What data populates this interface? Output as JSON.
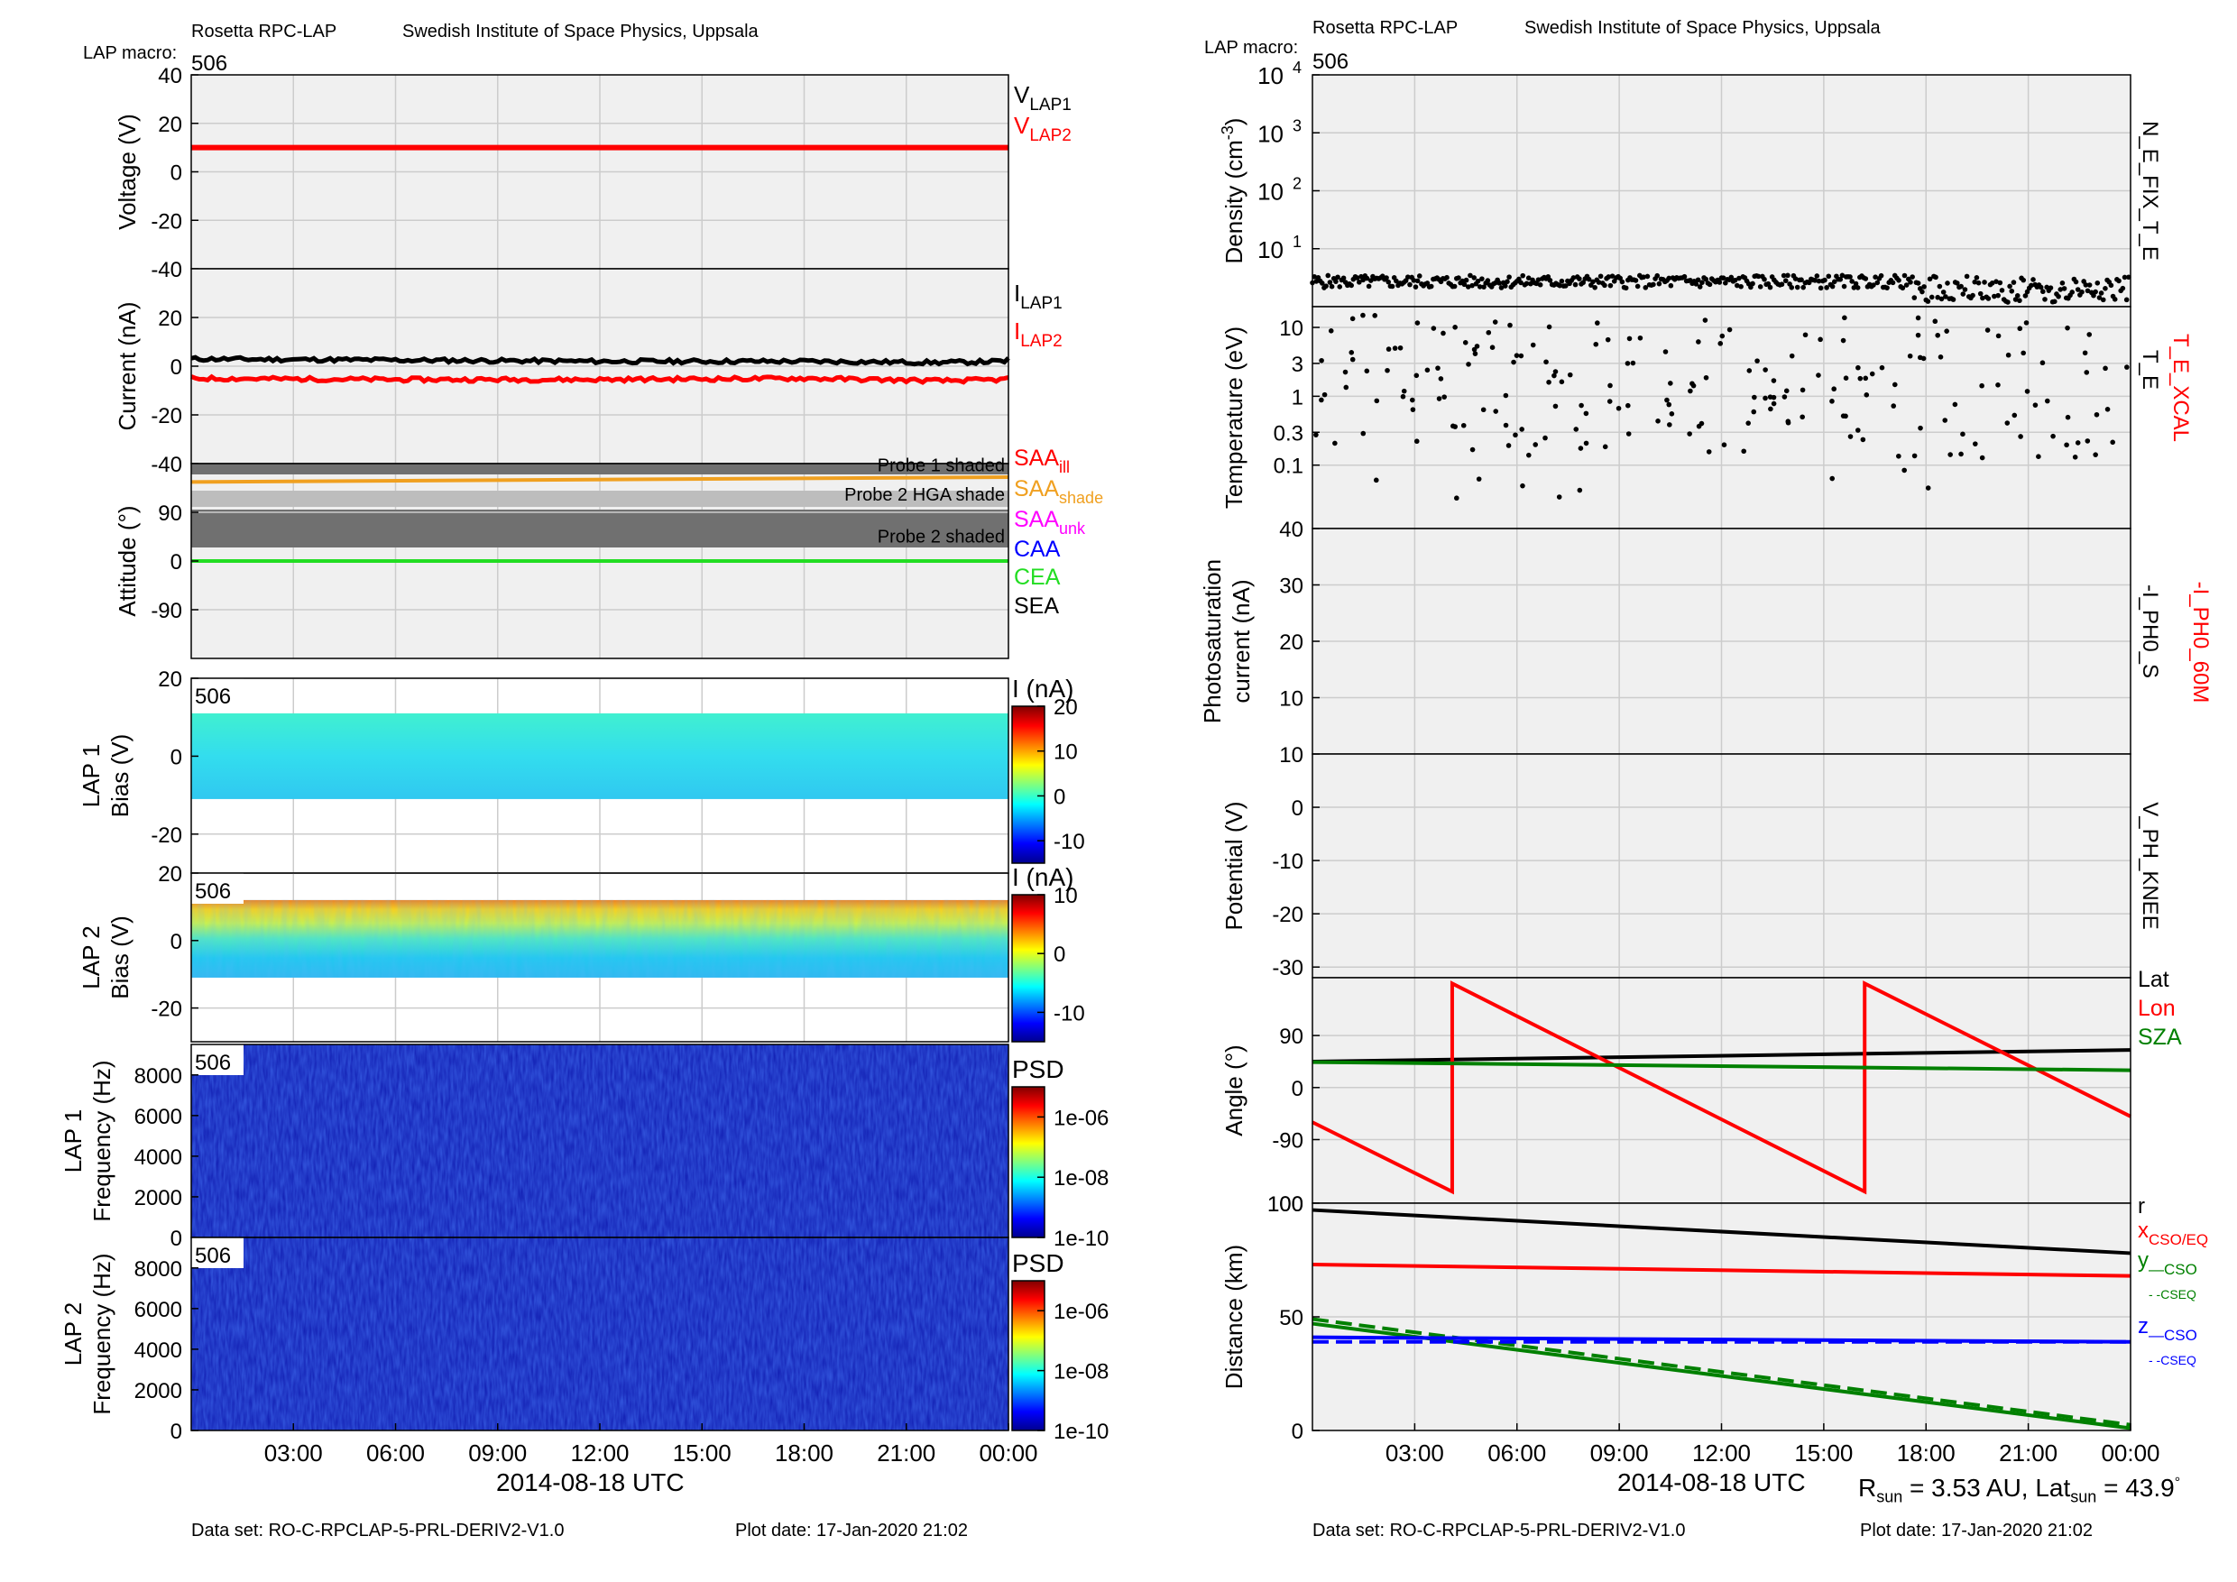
{
  "header": {
    "left": {
      "instrument": "Rosetta RPC-LAP",
      "institute": "Swedish Institute of Space Physics, Uppsala",
      "macro_label": "LAP macro:",
      "macro_value": "506"
    },
    "right": {
      "instrument": "Rosetta RPC-LAP",
      "institute": "Swedish Institute of Space Physics, Uppsala",
      "macro_label": "LAP macro:",
      "macro_value": "506"
    }
  },
  "footer": {
    "left": {
      "dataset": "Data set: RO-C-RPCLAP-5-PRL-DERIV2-V1.0",
      "plotdate": "Plot date: 17-Jan-2020 21:02",
      "xlabel": "2014-08-18 UTC"
    },
    "right": {
      "dataset": "Data set: RO-C-RPCLAP-5-PRL-DERIV2-V1.0",
      "plotdate": "Plot date: 17-Jan-2020 21:02",
      "xlabel": "2014-08-18 UTC",
      "rsun": "R",
      "rsun_sub": "sun",
      "rsun_val": " = 3.53 AU, Lat",
      "lat_sub": "sun",
      "lat_val": " = 43.9",
      "deg": "°"
    }
  },
  "colors": {
    "red": "#ff0000",
    "black": "#000000",
    "green": "#008000",
    "lime": "#22dd22",
    "blue": "#0000ff",
    "orange": "#f0a020",
    "magenta": "#ff00ff",
    "panel_bg": "#f0f0f0",
    "grid": "#cccccc"
  },
  "chart_data": [
    {
      "type": "line",
      "id": "voltage",
      "ylabel": "Voltage (V)",
      "ylim": [
        -40,
        40
      ],
      "yticks": [
        40,
        20,
        0,
        -20,
        -40
      ],
      "series": [
        {
          "name": "V_LAP1",
          "color": "#000000",
          "values": []
        },
        {
          "name": "V_LAP2",
          "color": "#ff0000",
          "x": [
            0,
            24
          ],
          "values": [
            10,
            10
          ]
        }
      ],
      "legend": [
        {
          "main": "V",
          "sub": "LAP1",
          "color": "#000000"
        },
        {
          "main": "V",
          "sub": "LAP2",
          "color": "#ff0000"
        }
      ]
    },
    {
      "type": "line",
      "id": "current",
      "ylabel": "Current (nA)",
      "ylim": [
        -40,
        40
      ],
      "yticks": [
        20,
        0,
        -20,
        -40
      ],
      "series": [
        {
          "name": "I_LAP1",
          "color": "#000000",
          "x": [
            0,
            6,
            12,
            18,
            22,
            24
          ],
          "values": [
            3,
            2.5,
            2,
            2,
            1.5,
            2
          ]
        },
        {
          "name": "I_LAP2",
          "color": "#ff0000",
          "x": [
            0,
            6,
            12,
            18,
            22,
            24
          ],
          "values": [
            -5,
            -5.5,
            -5.5,
            -5,
            -6,
            -5.5
          ]
        }
      ],
      "legend": [
        {
          "main": "I",
          "sub": "LAP1",
          "color": "#000000"
        },
        {
          "main": "I",
          "sub": "LAP2",
          "color": "#ff0000"
        }
      ]
    },
    {
      "type": "line",
      "id": "attitude",
      "ylabel": "Attitude (°)",
      "ylim": [
        -180,
        180
      ],
      "yticks": [
        90,
        0,
        -90
      ],
      "bands": [
        {
          "label": "Probe 1 shaded",
          "range": [
            160,
            180
          ],
          "shade": "#707070"
        },
        {
          "label": "Probe 2 HGA shade",
          "range": [
            100,
            130
          ],
          "shade": "#bdbdbd"
        },
        {
          "label": "Probe 2 shaded",
          "range": [
            25,
            95
          ],
          "shade": "#707070"
        }
      ],
      "series": [
        {
          "name": "SAA_shade",
          "color": "#f0a020",
          "x": [
            0,
            24
          ],
          "values": [
            146,
            155
          ]
        },
        {
          "name": "CEA",
          "color": "#22dd22",
          "x": [
            0,
            24
          ],
          "values": [
            0,
            0
          ]
        }
      ],
      "legend": [
        {
          "main": "SAA",
          "sub": "ill",
          "color": "#ff0000"
        },
        {
          "main": "SAA",
          "sub": "shade",
          "color": "#f0a020"
        },
        {
          "main": "SAA",
          "sub": "unk",
          "color": "#ff00ff"
        },
        {
          "main": "CAA",
          "sub": "",
          "color": "#0000ff"
        },
        {
          "main": "CEA",
          "sub": "",
          "color": "#22dd22"
        },
        {
          "main": "SEA",
          "sub": "",
          "color": "#000000"
        }
      ]
    },
    {
      "type": "heatmap",
      "id": "lap1bias",
      "ylabel": "LAP 1",
      "ylabel2": "Bias (V)",
      "ylim": [
        -30,
        20
      ],
      "yticks": [
        20,
        0,
        -20
      ],
      "macro": "506",
      "clabel": "I (nA)",
      "clim": [
        -15,
        20
      ],
      "cticks": [
        20,
        10,
        0,
        -10
      ],
      "band_range": [
        -11,
        11
      ]
    },
    {
      "type": "heatmap",
      "id": "lap2bias",
      "ylabel": "LAP 2",
      "ylabel2": "Bias (V)",
      "ylim": [
        -30,
        20
      ],
      "yticks": [
        20,
        0,
        -20
      ],
      "macro": "506",
      "clabel": "I (nA)",
      "clim": [
        -15,
        10
      ],
      "cticks": [
        10,
        0,
        -10
      ],
      "band_range": [
        -11,
        12
      ]
    },
    {
      "type": "heatmap",
      "id": "lap1psd",
      "ylabel": "LAP 1",
      "ylabel2": "Frequency (Hz)",
      "ylim": [
        0,
        9500
      ],
      "yticks": [
        8000,
        6000,
        4000,
        2000,
        0
      ],
      "macro": "506",
      "clabel": "PSD",
      "clim": [
        -10,
        -5
      ],
      "cticks": [
        "1e-06",
        "1e-08",
        "1e-10"
      ]
    },
    {
      "type": "heatmap",
      "id": "lap2psd",
      "ylabel": "LAP 2",
      "ylabel2": "Frequency (Hz)",
      "ylim": [
        0,
        9500
      ],
      "yticks": [
        8000,
        6000,
        4000,
        2000,
        0
      ],
      "macro": "506",
      "clabel": "PSD",
      "clim": [
        -10,
        -5
      ],
      "cticks": [
        "1e-06",
        "1e-08",
        "1e-10"
      ],
      "xticks": [
        "03:00",
        "06:00",
        "09:00",
        "12:00",
        "15:00",
        "18:00",
        "21:00",
        "00:00"
      ]
    },
    {
      "type": "scatter",
      "id": "density",
      "ylabel": "Density (cm",
      "ylabel_sup": "-3",
      "ylabel_end": ")",
      "yscale": "log",
      "ylim": [
        1,
        10000
      ],
      "yticks": [
        {
          "base": "10",
          "exp": "4"
        },
        {
          "base": "10",
          "exp": "3"
        },
        {
          "base": "10",
          "exp": "2"
        },
        {
          "base": "10",
          "exp": "1"
        }
      ],
      "series": [
        {
          "name": "N_E_FIX_T_E",
          "color": "#000000",
          "typical": 2.7
        }
      ],
      "legend": [
        {
          "main": "N_E_FIX_T_E",
          "color": "#000000"
        }
      ]
    },
    {
      "type": "scatter",
      "id": "temperature",
      "ylabel": "Temperature (eV)",
      "yscale": "log",
      "ylim": [
        0.012,
        20
      ],
      "yticks": [
        "10",
        "3",
        "1",
        "0.3",
        "0.1"
      ],
      "series": [
        {
          "name": "T_E",
          "color": "#000000"
        },
        {
          "name": "T_E_XCAL",
          "color": "#ff0000"
        }
      ],
      "legend": [
        {
          "main": "T_E",
          "color": "#000000"
        },
        {
          "main": "T_E_XCAL",
          "color": "#ff0000"
        }
      ]
    },
    {
      "type": "line",
      "id": "photosat",
      "ylabel": "Photosaturation",
      "ylabel2": "current (nA)",
      "ylim": [
        0,
        40
      ],
      "yticks": [
        40,
        30,
        20,
        10
      ],
      "series": [],
      "legend": [
        {
          "main": "-I_PH0_S",
          "color": "#000000"
        },
        {
          "main": "-I_PH0_60M",
          "color": "#ff0000"
        }
      ]
    },
    {
      "type": "line",
      "id": "potential",
      "ylabel": "Potential (V)",
      "ylim": [
        -32,
        10
      ],
      "yticks": [
        10,
        0,
        -10,
        -20,
        -30
      ],
      "series": [],
      "legend": [
        {
          "main": "V_PH_KNEE",
          "color": "#000000"
        }
      ]
    },
    {
      "type": "line",
      "id": "angle",
      "ylabel": "Angle (°)",
      "ylim": [
        -200,
        190
      ],
      "yticks": [
        90,
        0,
        -90,
        "100"
      ],
      "series": [
        {
          "name": "Lat",
          "color": "#000000",
          "x": [
            0,
            24
          ],
          "values": [
            45,
            65
          ]
        },
        {
          "name": "Lon",
          "color": "#ff0000",
          "x": [
            0,
            4.1,
            4.1,
            16.2,
            16.2,
            24
          ],
          "values": [
            -60,
            -180,
            180,
            -180,
            180,
            -50
          ]
        },
        {
          "name": "SZA",
          "color": "#008000",
          "x": [
            0,
            24
          ],
          "values": [
            44,
            30
          ]
        }
      ],
      "legend": [
        {
          "main": "Lat",
          "color": "#000000"
        },
        {
          "main": "Lon",
          "color": "#ff0000"
        },
        {
          "main": "SZA",
          "color": "#008000"
        }
      ]
    },
    {
      "type": "line",
      "id": "distance",
      "ylabel": "Distance (km)",
      "ylim": [
        0,
        100
      ],
      "yticks": [
        100,
        50,
        0
      ],
      "xticks": [
        "03:00",
        "06:00",
        "09:00",
        "12:00",
        "15:00",
        "18:00",
        "21:00",
        "00:00"
      ],
      "series": [
        {
          "name": "r",
          "color": "#000000",
          "x": [
            0,
            24
          ],
          "values": [
            97,
            78
          ]
        },
        {
          "name": "x_CSO/EQ",
          "color": "#ff0000",
          "x": [
            0,
            24
          ],
          "values": [
            73,
            68
          ]
        },
        {
          "name": "y_CSO",
          "color": "#008000",
          "x": [
            0,
            24
          ],
          "values": [
            47,
            1
          ]
        },
        {
          "name": "y_CSEQ",
          "color": "#008000",
          "dash": true,
          "x": [
            0,
            24
          ],
          "values": [
            49,
            2.5
          ]
        },
        {
          "name": "z_CSO",
          "color": "#0000ff",
          "x": [
            0,
            24
          ],
          "values": [
            41,
            39
          ]
        },
        {
          "name": "z_CSEQ",
          "color": "#0000ff",
          "dash": true,
          "x": [
            0,
            24
          ],
          "values": [
            39,
            39
          ]
        }
      ],
      "legend": [
        {
          "main": "r",
          "sub": "",
          "color": "#000000"
        },
        {
          "main": "x",
          "sub": "CSO/EQ",
          "color": "#ff0000"
        },
        {
          "main": "y",
          "sub": "—CSO",
          "color": "#008000"
        },
        {
          "main": "",
          "sub": "- -CSEQ",
          "color": "#008000"
        },
        {
          "main": "z",
          "sub": "—CSO",
          "color": "#0000ff"
        },
        {
          "main": "",
          "sub": "- -CSEQ",
          "color": "#0000ff"
        }
      ]
    }
  ]
}
